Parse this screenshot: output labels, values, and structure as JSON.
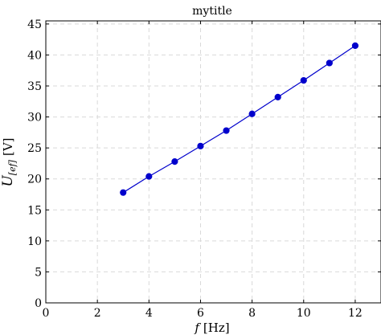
{
  "chart_data": {
    "type": "line",
    "title": "mytitle",
    "xlabel": {
      "main": "f",
      "unit": "[Hz]"
    },
    "ylabel": {
      "main": "U",
      "sub": "[ef]",
      "unit": "[V]"
    },
    "xlim": [
      0,
      13
    ],
    "ylim": [
      0,
      45.5
    ],
    "xticks": [
      0,
      2,
      4,
      6,
      8,
      10,
      12
    ],
    "yticks": [
      0,
      5,
      10,
      15,
      20,
      25,
      30,
      35,
      40,
      45
    ],
    "grid": true,
    "series": [
      {
        "color": "#0000cc",
        "x": [
          3,
          4,
          5,
          6,
          7,
          8,
          9,
          10,
          11,
          12
        ],
        "y": [
          17.8,
          20.4,
          22.8,
          25.3,
          27.8,
          30.5,
          33.2,
          35.9,
          38.7,
          41.5
        ]
      }
    ]
  }
}
